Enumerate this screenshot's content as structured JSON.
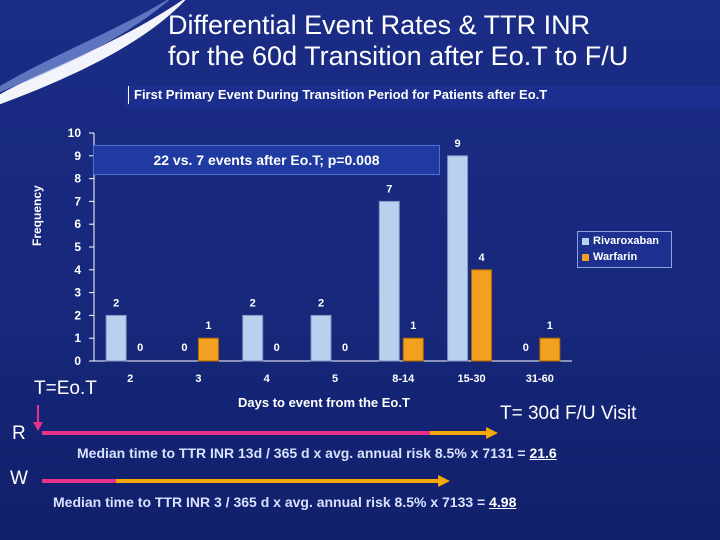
{
  "slide": {
    "title_line1": "Differential Event Rates & TTR INR",
    "title_line2": "for the 60d Transition after Eo.T to F/U",
    "callout": "22 vs. 7 events after Eo.T; p=0.008",
    "eot_label": "T=Eo.T",
    "fu_label": "T= 30d F/U Visit",
    "r_label": "R",
    "w_label": "W",
    "r_note_prefix": "Median time to TTR INR 13d / 365 d x avg. annual risk 8.5% x 7131 = ",
    "r_note_value": "21.6",
    "w_note_prefix": "Median time to TTR INR 3 / 365 d x avg. annual risk 8.5% x 7133 = ",
    "w_note_value": "4.98",
    "colors": {
      "riva": "#b9d0ee",
      "warf": "#f2a020",
      "pink": "#e8318a",
      "orange": "#f5a800"
    }
  },
  "chart_data": {
    "type": "bar",
    "title": "First Primary Event During Transition Period for Patients after Eo.T",
    "xlabel": "Days to event from the Eo.T",
    "ylabel": "Frequency",
    "categories": [
      "2",
      "3",
      "4",
      "5",
      "8-14",
      "15-30",
      "31-60"
    ],
    "series": [
      {
        "name": "Rivaroxaban",
        "values": [
          2,
          0,
          2,
          2,
          7,
          9,
          0
        ]
      },
      {
        "name": "Warfarin",
        "values": [
          0,
          1,
          0,
          0,
          1,
          4,
          1
        ]
      }
    ],
    "ylim": [
      0,
      10
    ],
    "yticks": [
      0,
      1,
      2,
      3,
      4,
      5,
      6,
      7,
      8,
      9,
      10
    ],
    "legend": "right"
  }
}
